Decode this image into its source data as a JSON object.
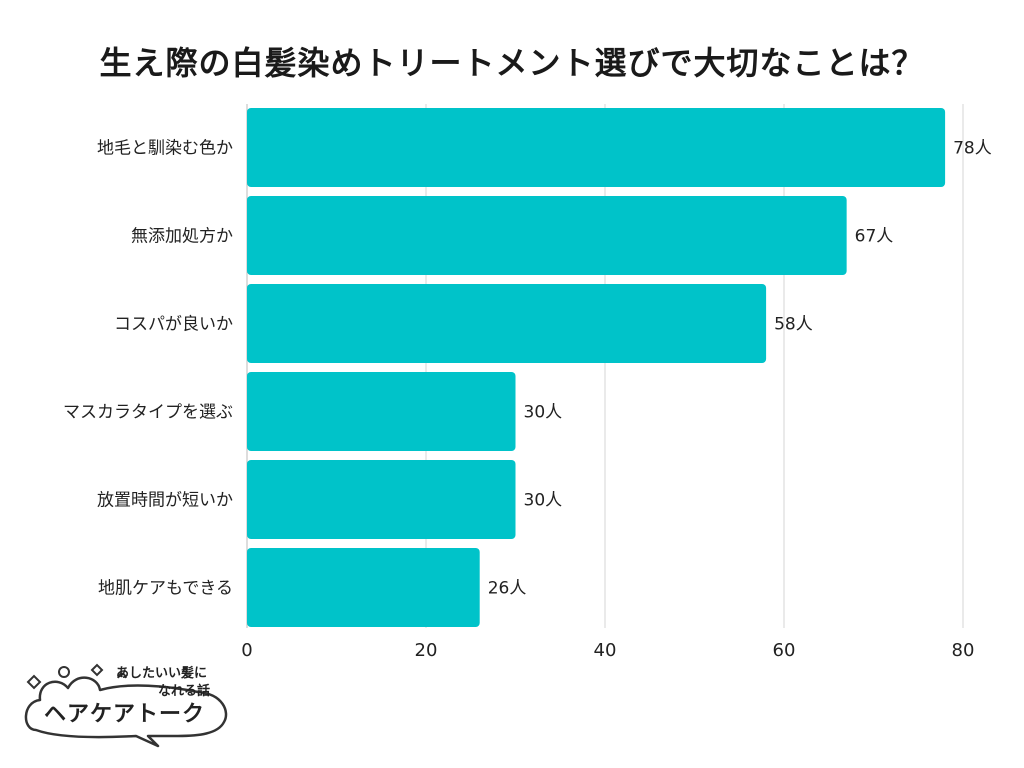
{
  "title": "生え際の白髪染めトリートメント選びで大切なことは？",
  "chart_data": {
    "type": "bar",
    "orientation": "horizontal",
    "title": "生え際の白髪染めトリートメント選びで大切なことは？",
    "categories": [
      "地毛と馴染む色か",
      "無添加処方か",
      "コスパが良いか",
      "マスカラタイプを選ぶ",
      "放置時間が短いか",
      "地肌ケアもできる"
    ],
    "values": [
      78,
      67,
      58,
      30,
      30,
      26
    ],
    "value_labels": [
      "78人",
      "67人",
      "58人",
      "30人",
      "30人",
      "26人"
    ],
    "xlim": [
      0,
      80
    ],
    "xticks": [
      0,
      20,
      40,
      60,
      80
    ],
    "grid": true,
    "bar_color": "#00c3c9",
    "grid_color": "#d4d4d4"
  },
  "logo": {
    "tagline_line1": "あしたいい髪に",
    "tagline_line2": "なれる話",
    "name": "ヘアケアトーク"
  }
}
